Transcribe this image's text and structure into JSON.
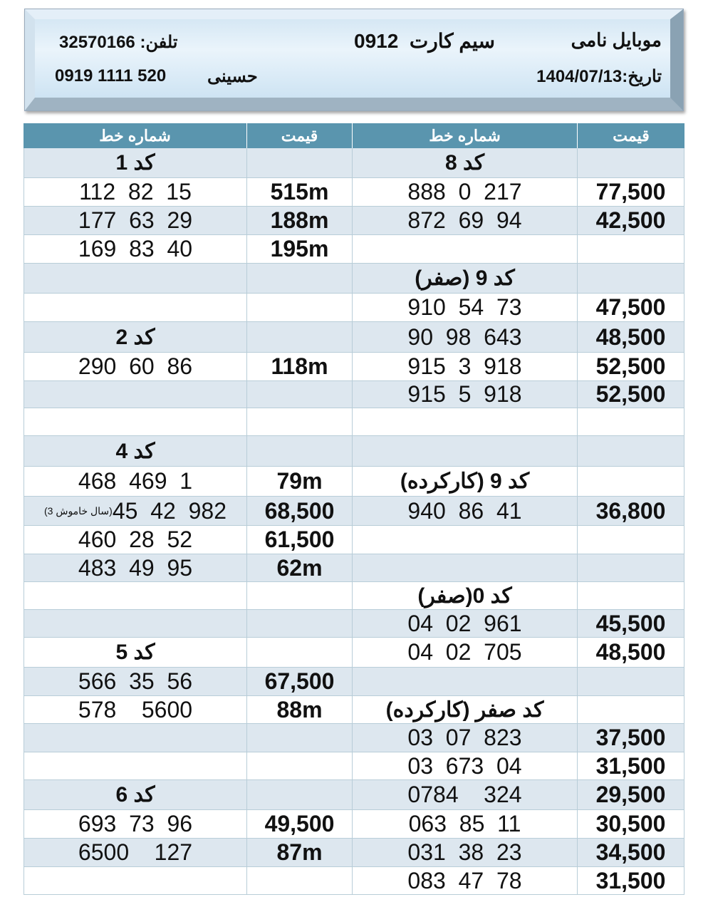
{
  "banner": {
    "shop": "موبایل نامی",
    "title": "سیم کارت  0912",
    "phone": "تلفن: 32570166",
    "date": "تاریخ:1404/07/13",
    "contact_name": "حسینی",
    "mobile": "0919 1111 520"
  },
  "headers": [
    "شماره خط",
    "قیمت",
    "شماره خط",
    "قیمت"
  ],
  "rows": [
    {
      "l_num": "کد 1",
      "l_price": "",
      "r_num": "کد 8",
      "r_price": "",
      "l_code": true,
      "r_code": true
    },
    {
      "l_num": "112  82  15",
      "l_price": "515m",
      "r_num": "888  0  217",
      "r_price": "77,500"
    },
    {
      "l_num": "177  63  29",
      "l_price": "188m",
      "r_num": "872  69  94",
      "r_price": "42,500"
    },
    {
      "l_num": "169  83  40",
      "l_price": "195m",
      "r_num": "",
      "r_price": ""
    },
    {
      "l_num": "",
      "l_price": "",
      "r_num": "کد 9 (صفر)",
      "r_price": "",
      "r_code": true
    },
    {
      "l_num": "",
      "l_price": "",
      "r_num": "910  54  73",
      "r_price": "47,500"
    },
    {
      "l_num": "کد 2",
      "l_price": "",
      "r_num": "90  98  643",
      "r_price": "48,500",
      "l_code": true
    },
    {
      "l_num": "290  60  86",
      "l_price": "118m",
      "r_num": "915  3  918",
      "r_price": "52,500"
    },
    {
      "l_num": "",
      "l_price": "",
      "r_num": "915  5  918",
      "r_price": "52,500"
    },
    {
      "l_num": "",
      "l_price": "",
      "r_num": "",
      "r_price": ""
    },
    {
      "l_num": "کد 4",
      "l_price": "",
      "r_num": "",
      "r_price": "",
      "l_code": true
    },
    {
      "l_num": "468  469  1",
      "l_price": "79m",
      "r_num": "کد 9 (کارکرده)",
      "r_price": "",
      "r_code": true
    },
    {
      "l_num": "45  42  982",
      "l_note": "(3 سال خاموش)",
      "l_price": "68,500",
      "r_num": "940  86  41",
      "r_price": "36,800"
    },
    {
      "l_num": "460  28  52",
      "l_price": "61,500",
      "r_num": "",
      "r_price": ""
    },
    {
      "l_num": "483  49  95",
      "l_price": "62m",
      "r_num": "",
      "r_price": ""
    },
    {
      "l_num": "",
      "l_price": "",
      "r_num": "کد 0(صفر)",
      "r_price": "",
      "r_code": true
    },
    {
      "l_num": "",
      "l_price": "",
      "r_num": "04  02  961",
      "r_price": "45,500"
    },
    {
      "l_num": "کد 5",
      "l_price": "",
      "r_num": "04  02  705",
      "r_price": "48,500",
      "l_code": true
    },
    {
      "l_num": "566  35  56",
      "l_price": "67,500",
      "r_num": "",
      "r_price": ""
    },
    {
      "l_num": "578    5600",
      "l_price": "88m",
      "r_num": "کد صفر (کارکرده)",
      "r_price": "",
      "r_code": true
    },
    {
      "l_num": "",
      "l_price": "",
      "r_num": "03  07  823",
      "r_price": "37,500"
    },
    {
      "l_num": "",
      "l_price": "",
      "r_num": "03  673  04",
      "r_price": "31,500"
    },
    {
      "l_num": "کد 6",
      "l_price": "",
      "r_num": "0784    324",
      "r_price": "29,500",
      "l_code": true
    },
    {
      "l_num": "693  73  96",
      "l_price": "49,500",
      "r_num": "063  85  11",
      "r_price": "30,500"
    },
    {
      "l_num": "6500    127",
      "l_price": "87m",
      "r_num": "031  38  23",
      "r_price": "34,500"
    },
    {
      "l_num": "",
      "l_price": "",
      "r_num": "083  47  78",
      "r_price": "31,500"
    }
  ],
  "colors": {
    "header_bg": "#5a95ae",
    "shaded_row": "#dde7ef",
    "banner": "#d6e9f6"
  }
}
